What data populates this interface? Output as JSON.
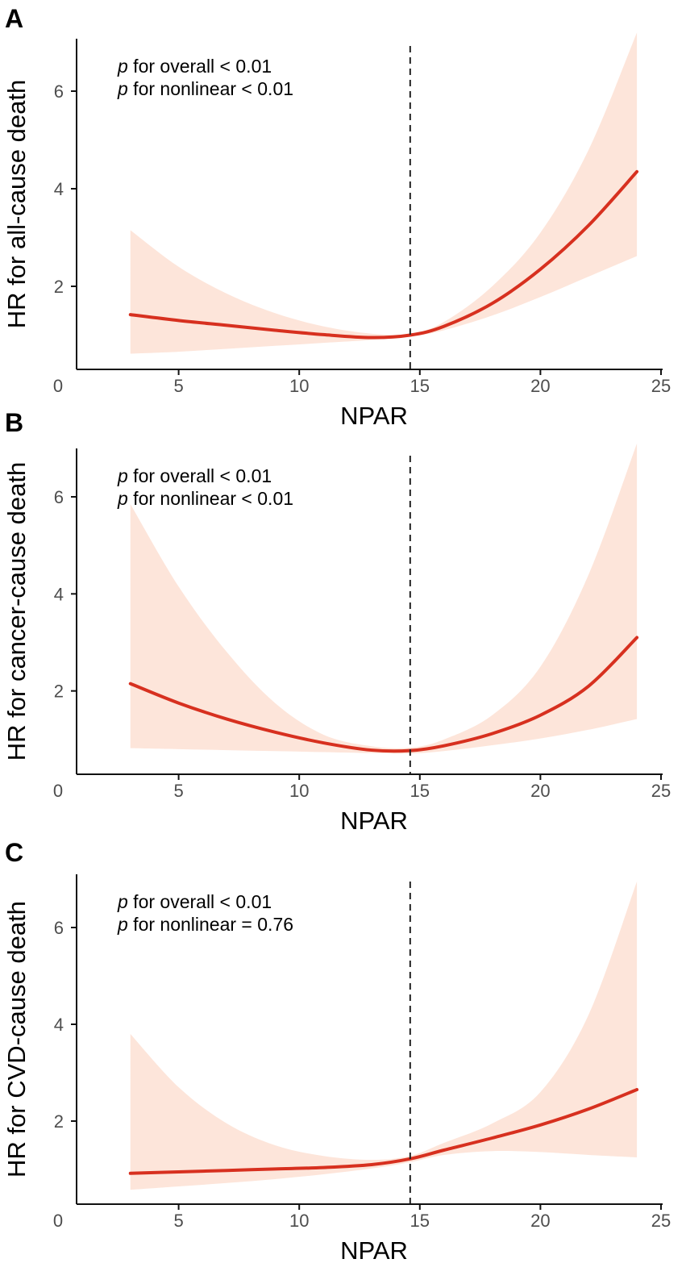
{
  "chart_data": [
    {
      "type": "line",
      "panel": "A",
      "xlabel": "NPAR",
      "ylabel": "HR for all-cause death",
      "xlim": [
        0,
        25
      ],
      "ylim": [
        0,
        7
      ],
      "xticks": [
        "0",
        "5",
        "10",
        "15",
        "20",
        "25"
      ],
      "yticks": [
        "2",
        "4",
        "6"
      ],
      "xtick_values": [
        0,
        5,
        10,
        15,
        20,
        25
      ],
      "ytick_values": [
        2,
        4,
        6
      ],
      "reference_line_x": 14.6,
      "annotations": [
        {
          "p": "p",
          "text": " for overall < 0.01"
        },
        {
          "p": "p",
          "text": " for nonlinear < 0.01"
        }
      ],
      "series": [
        {
          "name": "HR",
          "color": "#d7301f",
          "x": [
            3,
            5,
            7,
            9,
            11,
            13,
            14.6,
            16,
            18,
            20,
            22,
            24
          ],
          "values": [
            1.42,
            1.3,
            1.2,
            1.1,
            1.01,
            0.95,
            1.0,
            1.18,
            1.65,
            2.35,
            3.25,
            4.35
          ]
        },
        {
          "name": "95% CI lower",
          "color": "#fde5da",
          "x": [
            3,
            5,
            7,
            9,
            11,
            13,
            14.6,
            16,
            18,
            20,
            22,
            24
          ],
          "values": [
            0.62,
            0.66,
            0.72,
            0.78,
            0.84,
            0.9,
            0.97,
            1.1,
            1.4,
            1.78,
            2.2,
            2.62
          ]
        },
        {
          "name": "95% CI upper",
          "color": "#fde5da",
          "x": [
            3,
            5,
            7,
            9,
            11,
            13,
            14.6,
            16,
            18,
            20,
            22,
            24
          ],
          "values": [
            3.15,
            2.4,
            1.85,
            1.45,
            1.18,
            1.03,
            1.03,
            1.27,
            2.0,
            3.1,
            4.8,
            7.2
          ]
        }
      ]
    },
    {
      "type": "line",
      "panel": "B",
      "xlabel": "NPAR",
      "ylabel": "HR for cancer-cause death",
      "xlim": [
        0,
        25
      ],
      "ylim": [
        0,
        7
      ],
      "xticks": [
        "0",
        "5",
        "10",
        "15",
        "20",
        "25"
      ],
      "yticks": [
        "2",
        "4",
        "6"
      ],
      "xtick_values": [
        0,
        5,
        10,
        15,
        20,
        25
      ],
      "ytick_values": [
        2,
        4,
        6
      ],
      "reference_line_x": 14.6,
      "annotations": [
        {
          "p": "p",
          "text": " for overall < 0.01"
        },
        {
          "p": "p",
          "text": " for nonlinear < 0.01"
        }
      ],
      "series": [
        {
          "name": "HR",
          "color": "#d7301f",
          "x": [
            3,
            5,
            7,
            9,
            11,
            13,
            14.6,
            16,
            18,
            20,
            22,
            24
          ],
          "values": [
            2.15,
            1.75,
            1.42,
            1.15,
            0.93,
            0.78,
            0.77,
            0.87,
            1.12,
            1.5,
            2.1,
            3.1
          ]
        },
        {
          "name": "95% CI lower",
          "color": "#fde5da",
          "x": [
            3,
            5,
            7,
            9,
            11,
            13,
            14.6,
            16,
            18,
            20,
            22,
            24
          ],
          "values": [
            0.82,
            0.8,
            0.78,
            0.76,
            0.74,
            0.72,
            0.71,
            0.76,
            0.88,
            1.02,
            1.2,
            1.42
          ]
        },
        {
          "name": "95% CI upper",
          "color": "#fde5da",
          "x": [
            3,
            5,
            7,
            9,
            11,
            13,
            14.6,
            16,
            18,
            20,
            22,
            24
          ],
          "values": [
            5.85,
            4.15,
            2.8,
            1.75,
            1.1,
            0.86,
            0.83,
            1.0,
            1.5,
            2.5,
            4.4,
            7.1
          ]
        }
      ]
    },
    {
      "type": "line",
      "panel": "C",
      "xlabel": "NPAR",
      "ylabel": "HR for CVD-cause death",
      "xlim": [
        0,
        25
      ],
      "ylim": [
        0,
        7
      ],
      "xticks": [
        "0",
        "5",
        "10",
        "15",
        "20",
        "25"
      ],
      "yticks": [
        "2",
        "4",
        "6"
      ],
      "xtick_values": [
        0,
        5,
        10,
        15,
        20,
        25
      ],
      "ytick_values": [
        2,
        4,
        6
      ],
      "reference_line_x": 14.6,
      "annotations": [
        {
          "p": "p",
          "text": " for overall < 0.01"
        },
        {
          "p": "p",
          "text": " for nonlinear = 0.76"
        }
      ],
      "series": [
        {
          "name": "HR",
          "color": "#d7301f",
          "x": [
            3,
            5,
            7,
            9,
            11,
            13,
            14.6,
            16,
            18,
            20,
            22,
            24
          ],
          "values": [
            0.92,
            0.95,
            0.98,
            1.01,
            1.04,
            1.1,
            1.22,
            1.4,
            1.65,
            1.92,
            2.25,
            2.65
          ]
        },
        {
          "name": "95% CI lower",
          "color": "#fde5da",
          "x": [
            3,
            5,
            7,
            9,
            11,
            13,
            14.6,
            16,
            18,
            20,
            22,
            24
          ],
          "values": [
            0.58,
            0.65,
            0.72,
            0.8,
            0.9,
            1.02,
            1.15,
            1.3,
            1.38,
            1.36,
            1.3,
            1.25
          ]
        },
        {
          "name": "95% CI upper",
          "color": "#fde5da",
          "x": [
            3,
            5,
            7,
            9,
            11,
            13,
            14.6,
            16,
            18,
            20,
            22,
            24
          ],
          "values": [
            3.8,
            2.7,
            1.95,
            1.5,
            1.28,
            1.2,
            1.28,
            1.55,
            1.95,
            2.6,
            4.2,
            6.95
          ]
        }
      ]
    }
  ]
}
